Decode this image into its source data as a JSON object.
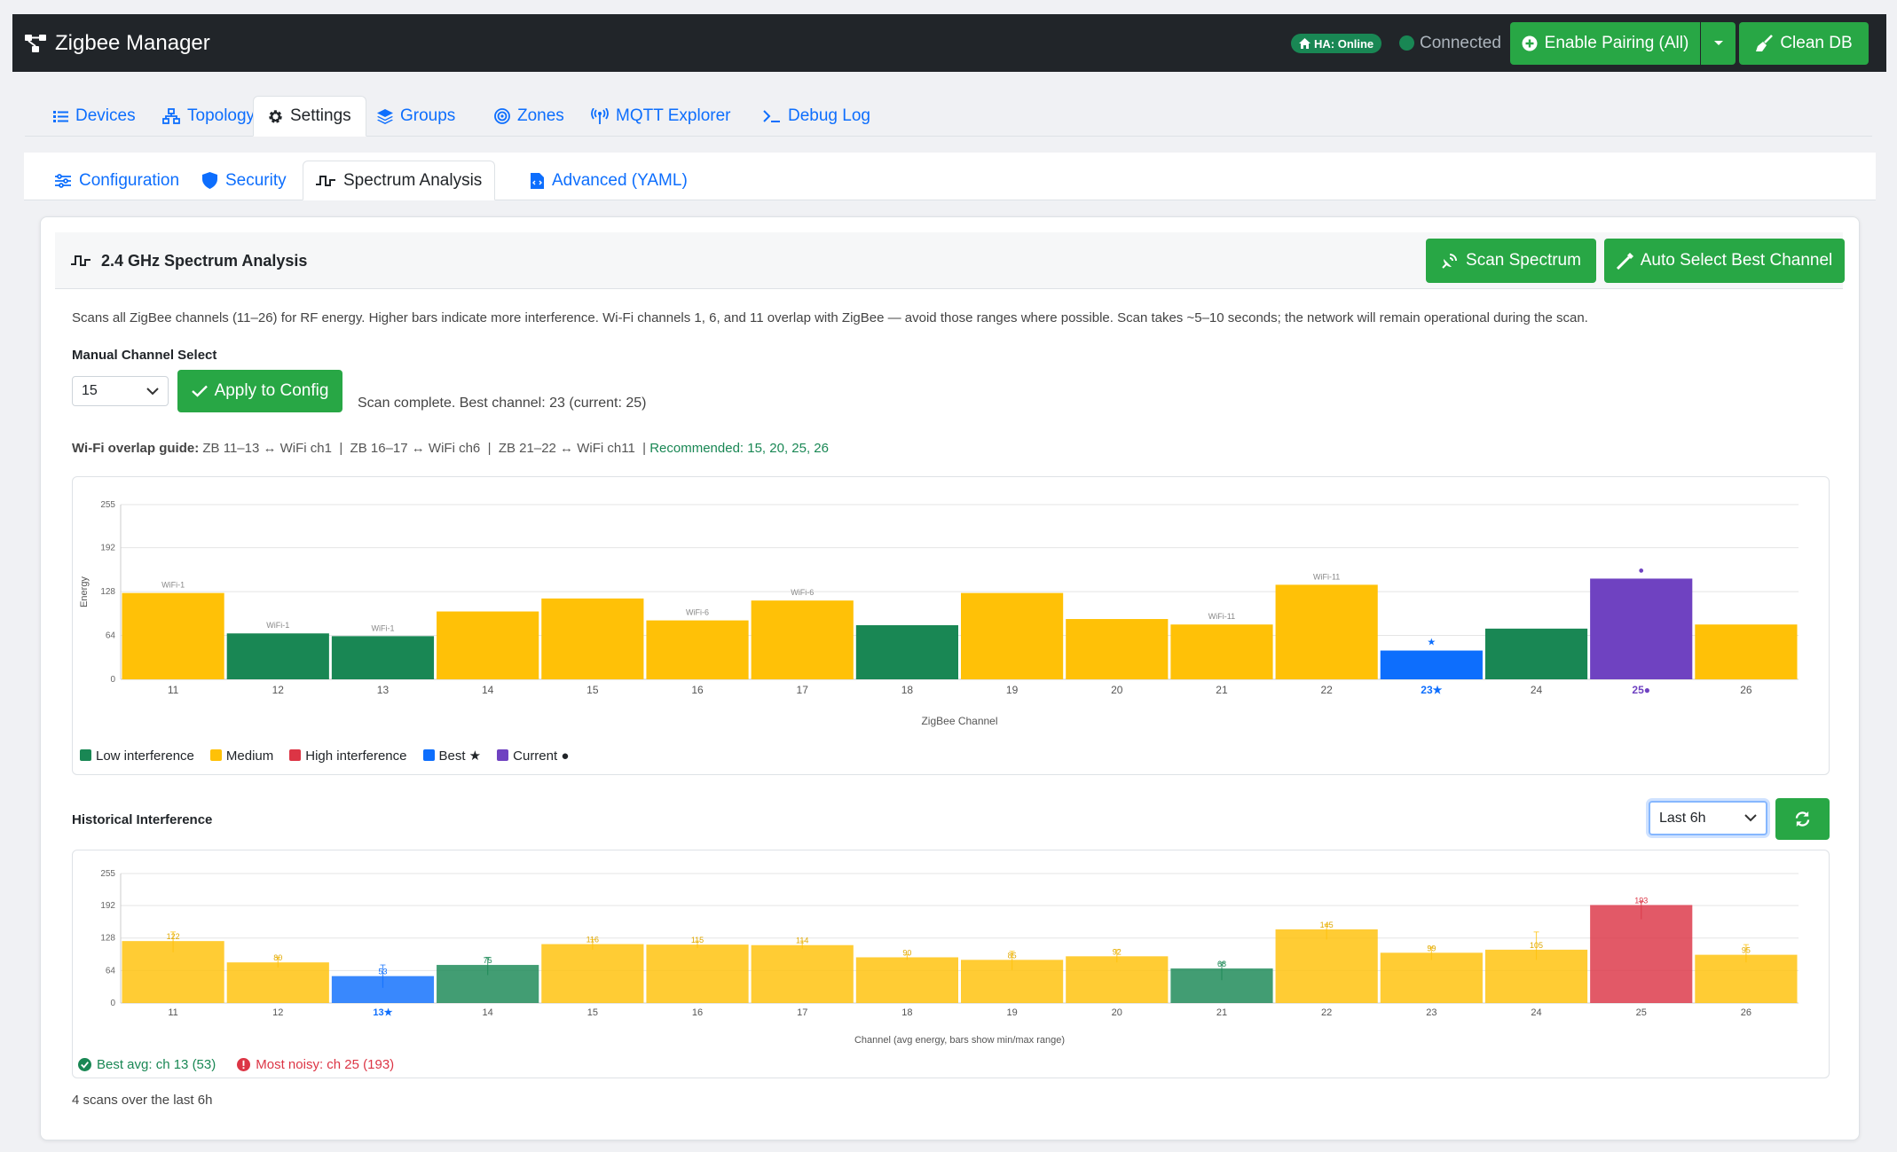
{
  "navbar": {
    "brand": "Zigbee Manager",
    "ha_badge": "HA: Online",
    "connection": "Connected",
    "pair_label": "Enable Pairing (All)",
    "clean_label": "Clean DB"
  },
  "main_tabs": [
    {
      "label": "Devices",
      "icon": "list-icon"
    },
    {
      "label": "Topology",
      "icon": "sitemap-icon"
    },
    {
      "label": "Settings",
      "icon": "gear-icon"
    },
    {
      "label": "Groups",
      "icon": "layers-icon"
    },
    {
      "label": "Zones",
      "icon": "bullseye-icon"
    },
    {
      "label": "MQTT Explorer",
      "icon": "antenna-icon"
    },
    {
      "label": "Debug Log",
      "icon": "terminal-icon"
    }
  ],
  "sub_tabs": [
    {
      "label": "Configuration",
      "icon": "sliders-icon"
    },
    {
      "label": "Security",
      "icon": "shield-icon"
    },
    {
      "label": "Spectrum Analysis",
      "icon": "pulse-icon"
    },
    {
      "label": "Advanced (YAML)",
      "icon": "file-code-icon"
    }
  ],
  "active_main_tab": "Settings",
  "active_sub_tab": "Spectrum Analysis",
  "spectrum": {
    "title": "2.4 GHz Spectrum Analysis",
    "scan_label": "Scan Spectrum",
    "auto_label": "Auto Select Best Channel",
    "description": "Scans all ZigBee channels (11–26) for RF energy. Higher bars indicate more interference. Wi-Fi channels 1, 6, and 11 overlap with ZigBee — avoid those ranges where possible. Scan takes ~5–10 seconds; the network will remain operational during the scan.",
    "manual_label": "Manual Channel Select",
    "selected_channel": "15",
    "apply_label": "Apply to Config",
    "status": "Scan complete. Best channel: 23 (current: 25)",
    "overlap_label": "Wi-Fi overlap guide:",
    "overlap_text": "ZB 11–13 ↔ WiFi ch1  |  ZB 16–17 ↔ WiFi ch6  |  ZB 21–22 ↔ WiFi ch11  |",
    "recommended": "Recommended: 15, 20, 25, 26",
    "legend": [
      {
        "label": "Low interference",
        "color": "#198754"
      },
      {
        "label": "Medium",
        "color": "#ffc107"
      },
      {
        "label": "High interference",
        "color": "#dc3545"
      },
      {
        "label": "Best ★",
        "color": "#0d6efd"
      },
      {
        "label": "Current ●",
        "color": "#6f42c1"
      }
    ]
  },
  "history": {
    "title": "Historical Interference",
    "range": "Last 6h",
    "best_avg": "Best avg: ch 13 (53)",
    "most_noisy": "Most noisy: ch 25 (193)",
    "scan_count": "4 scans over the last 6h"
  },
  "chart_data": [
    {
      "type": "bar",
      "categories": [
        "11",
        "12",
        "13",
        "14",
        "15",
        "16",
        "17",
        "18",
        "19",
        "20",
        "21",
        "22",
        "23",
        "24",
        "25",
        "26"
      ],
      "values": [
        126,
        67,
        63,
        99,
        118,
        86,
        115,
        79,
        126,
        88,
        80,
        138,
        42,
        74,
        147,
        80
      ],
      "levels": [
        "medium",
        "low",
        "low",
        "medium",
        "medium",
        "medium",
        "medium",
        "low",
        "medium",
        "medium",
        "medium",
        "medium",
        "best",
        "low",
        "current",
        "medium"
      ],
      "annotations": {
        "11": "WiFi-1",
        "12": "WiFi-1",
        "13": "WiFi-1",
        "16": "WiFi-6",
        "17": "WiFi-6",
        "21": "WiFi-11",
        "22": "WiFi-11",
        "23": "★",
        "25": "●"
      },
      "tick_labels": {
        "23": "23★",
        "25": "25●"
      },
      "xlabel": "ZigBee Channel",
      "ylabel": "Energy",
      "ylim": [
        0,
        255
      ],
      "yticks": [
        0,
        64,
        128,
        192,
        255
      ],
      "grid": true
    },
    {
      "type": "bar",
      "categories": [
        "11",
        "12",
        "13",
        "14",
        "15",
        "16",
        "17",
        "18",
        "19",
        "20",
        "21",
        "22",
        "23",
        "24",
        "25",
        "26"
      ],
      "values": [
        122,
        80,
        53,
        75,
        116,
        115,
        114,
        90,
        85,
        92,
        68,
        145,
        99,
        105,
        193,
        95
      ],
      "range_min": [
        100,
        70,
        30,
        55,
        105,
        108,
        107,
        85,
        65,
        80,
        45,
        125,
        85,
        85,
        165,
        80
      ],
      "range_max": [
        140,
        90,
        75,
        90,
        125,
        122,
        122,
        95,
        102,
        105,
        80,
        155,
        110,
        140,
        200,
        115
      ],
      "levels": [
        "medium",
        "medium",
        "best",
        "low",
        "medium",
        "medium",
        "medium",
        "medium",
        "medium",
        "medium",
        "low",
        "medium",
        "medium",
        "medium",
        "high",
        "medium"
      ],
      "tick_labels": {
        "13": "13★"
      },
      "xlabel": "Channel (avg energy, bars show min/max range)",
      "ylim": [
        0,
        255
      ],
      "yticks": [
        0,
        64,
        128,
        192,
        255
      ],
      "grid": true
    }
  ],
  "colors": {
    "low": "#198754",
    "medium": "#ffc107",
    "high": "#dc3545",
    "best": "#0d6efd",
    "current": "#6f42c1",
    "accent": "#28a745"
  }
}
